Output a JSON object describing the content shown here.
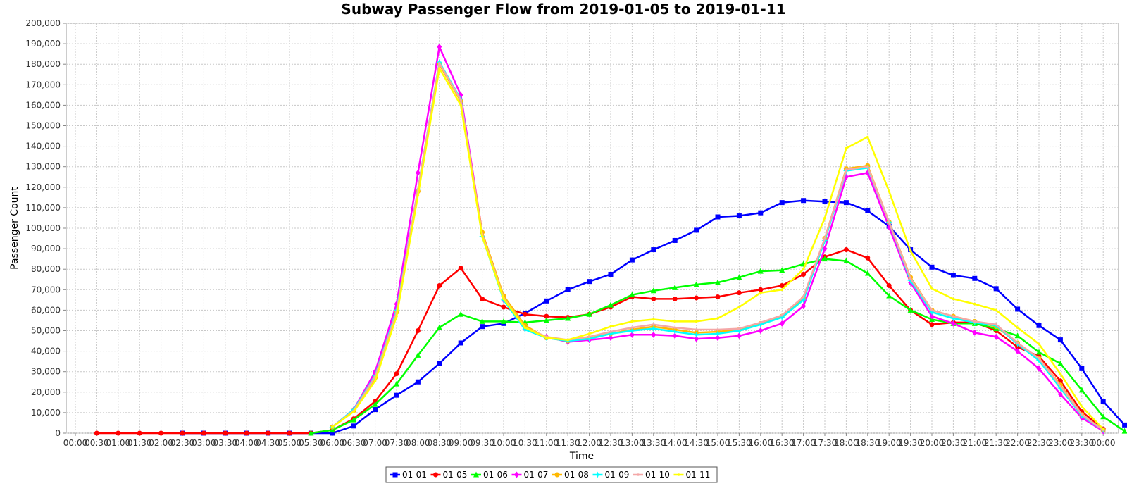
{
  "chart_data": {
    "type": "line",
    "title": "Subway Passenger Flow from 2019-01-05 to 2019-01-11",
    "xlabel": "Time",
    "ylabel": "Passenger Count",
    "ylim": [
      0,
      200000
    ],
    "y_ticks": [
      0,
      10000,
      20000,
      30000,
      40000,
      50000,
      60000,
      70000,
      80000,
      90000,
      100000,
      110000,
      120000,
      130000,
      140000,
      150000,
      160000,
      170000,
      180000,
      190000,
      200000
    ],
    "y_tick_labels": [
      "0",
      "10,000",
      "20,000",
      "30,000",
      "40,000",
      "50,000",
      "60,000",
      "70,000",
      "80,000",
      "90,000",
      "100,000",
      "110,000",
      "120,000",
      "130,000",
      "140,000",
      "150,000",
      "160,000",
      "170,000",
      "180,000",
      "190,000",
      "200,000"
    ],
    "x_ticks": [
      "00:00",
      "00:30",
      "01:00",
      "01:30",
      "02:00",
      "02:30",
      "03:00",
      "03:30",
      "04:00",
      "04:30",
      "05:00",
      "05:30",
      "06:00",
      "06:30",
      "07:00",
      "07:30",
      "08:00",
      "08:30",
      "09:00",
      "09:30",
      "10:00",
      "10:30",
      "11:00",
      "11:30",
      "12:00",
      "12:30",
      "13:00",
      "13:30",
      "14:00",
      "14:30",
      "15:00",
      "15:30",
      "16:00",
      "16:30",
      "17:00",
      "17:30",
      "18:00",
      "18:30",
      "19:00",
      "19:30",
      "20:00",
      "20:30",
      "21:00",
      "21:30",
      "22:00",
      "22:30",
      "23:00",
      "23:30",
      "00:00"
    ],
    "grid": true,
    "legend_position": "bottom-center",
    "series": [
      {
        "name": "01-01",
        "color": "#0000FF",
        "marker": "square",
        "start": 5,
        "values": [
          0,
          0,
          0,
          0,
          0,
          0,
          0,
          0,
          3500,
          11500,
          18500,
          25000,
          34000,
          44000,
          52000,
          53500,
          58500,
          64500,
          70000,
          74000,
          77500,
          84500,
          89500,
          94000,
          99000,
          105500,
          106000,
          107500,
          112500,
          113500,
          113000,
          112500,
          108500,
          101000,
          89500,
          81000,
          77000,
          75500,
          70500,
          60500,
          52500,
          45500,
          31500,
          15500,
          4000
        ]
      },
      {
        "name": "01-05",
        "color": "#FF0000",
        "marker": "circle",
        "start": 1,
        "values": [
          0,
          0,
          0,
          0,
          0,
          0,
          0,
          0,
          0,
          0,
          0,
          1500,
          7000,
          15500,
          29000,
          50000,
          72000,
          80500,
          65500,
          61500,
          58000,
          57000,
          56500,
          58000,
          61500,
          66500,
          65500,
          65500,
          66000,
          66500,
          68500,
          70000,
          72000,
          77500,
          86000,
          89500,
          85500,
          72000,
          60000,
          53000,
          54000,
          54000,
          50000,
          42000,
          37500,
          25500,
          10500,
          2000
        ]
      },
      {
        "name": "01-06",
        "color": "#00FF00",
        "marker": "triangle",
        "start": 11,
        "values": [
          0,
          1500,
          6500,
          14000,
          24000,
          38000,
          51500,
          58000,
          54500,
          54500,
          54000,
          55000,
          56000,
          58000,
          62500,
          67500,
          69500,
          71000,
          72500,
          73500,
          76000,
          79000,
          79500,
          82500,
          85000,
          84000,
          78000,
          67000,
          60000,
          55500,
          53500,
          53500,
          51000,
          47500,
          39500,
          34000,
          21000,
          8000,
          1000
        ]
      },
      {
        "name": "01-07",
        "color": "#FF00FF",
        "marker": "diamond",
        "start": 12,
        "values": [
          3000,
          11500,
          30000,
          63000,
          127000,
          188500,
          165000,
          98000,
          65000,
          51000,
          47000,
          44500,
          45500,
          46500,
          48000,
          48000,
          47500,
          46000,
          46500,
          47500,
          50000,
          53500,
          62000,
          90000,
          125000,
          127000,
          100500,
          73500,
          57000,
          53500,
          49000,
          47000,
          40000,
          31500,
          19000,
          7500,
          1000
        ]
      },
      {
        "name": "01-08",
        "color": "#FFB800",
        "marker": "circle",
        "start": 12,
        "values": [
          3000,
          11000,
          27000,
          59000,
          118000,
          180000,
          162000,
          98000,
          67000,
          52500,
          46500,
          45000,
          46500,
          48500,
          50500,
          52000,
          50500,
          49000,
          49500,
          50500,
          53500,
          57000,
          66000,
          95000,
          129000,
          130500,
          103000,
          76000,
          60000,
          57000,
          54500,
          52000,
          44000,
          36500,
          23500,
          9000,
          1500
        ]
      },
      {
        "name": "01-09",
        "color": "#00FFFF",
        "marker": "star",
        "start": 12,
        "values": [
          3000,
          11500,
          28000,
          60000,
          119000,
          181000,
          163000,
          96000,
          65000,
          50500,
          46500,
          45000,
          46000,
          48500,
          50000,
          51000,
          49500,
          48000,
          48500,
          50000,
          53000,
          56500,
          65000,
          94000,
          128000,
          129500,
          103000,
          74500,
          59000,
          56000,
          54000,
          52500,
          43500,
          35500,
          22000,
          8500,
          1500
        ]
      },
      {
        "name": "01-10",
        "color": "#F4A7A7",
        "marker": "none",
        "start": 12,
        "values": [
          3000,
          11000,
          27500,
          59000,
          119000,
          180500,
          162500,
          97000,
          66000,
          51500,
          47000,
          45500,
          47000,
          49500,
          51500,
          53000,
          51500,
          50500,
          50500,
          51000,
          54000,
          57500,
          66500,
          95000,
          128500,
          130000,
          103000,
          75500,
          60000,
          57000,
          54500,
          53000,
          44000,
          36500,
          23000,
          9000,
          1500
        ]
      },
      {
        "name": "01-11",
        "color": "#FFFF00",
        "marker": "none",
        "start": 12,
        "values": [
          3000,
          10500,
          25500,
          57000,
          116000,
          178000,
          160000,
          96000,
          65500,
          51500,
          46500,
          45500,
          48500,
          52000,
          54500,
          55500,
          54500,
          54500,
          56000,
          61500,
          68500,
          70000,
          80000,
          105000,
          139000,
          144500,
          118000,
          89000,
          70500,
          65500,
          63000,
          60000,
          51500,
          43500,
          29000,
          13000,
          2000
        ]
      }
    ]
  }
}
